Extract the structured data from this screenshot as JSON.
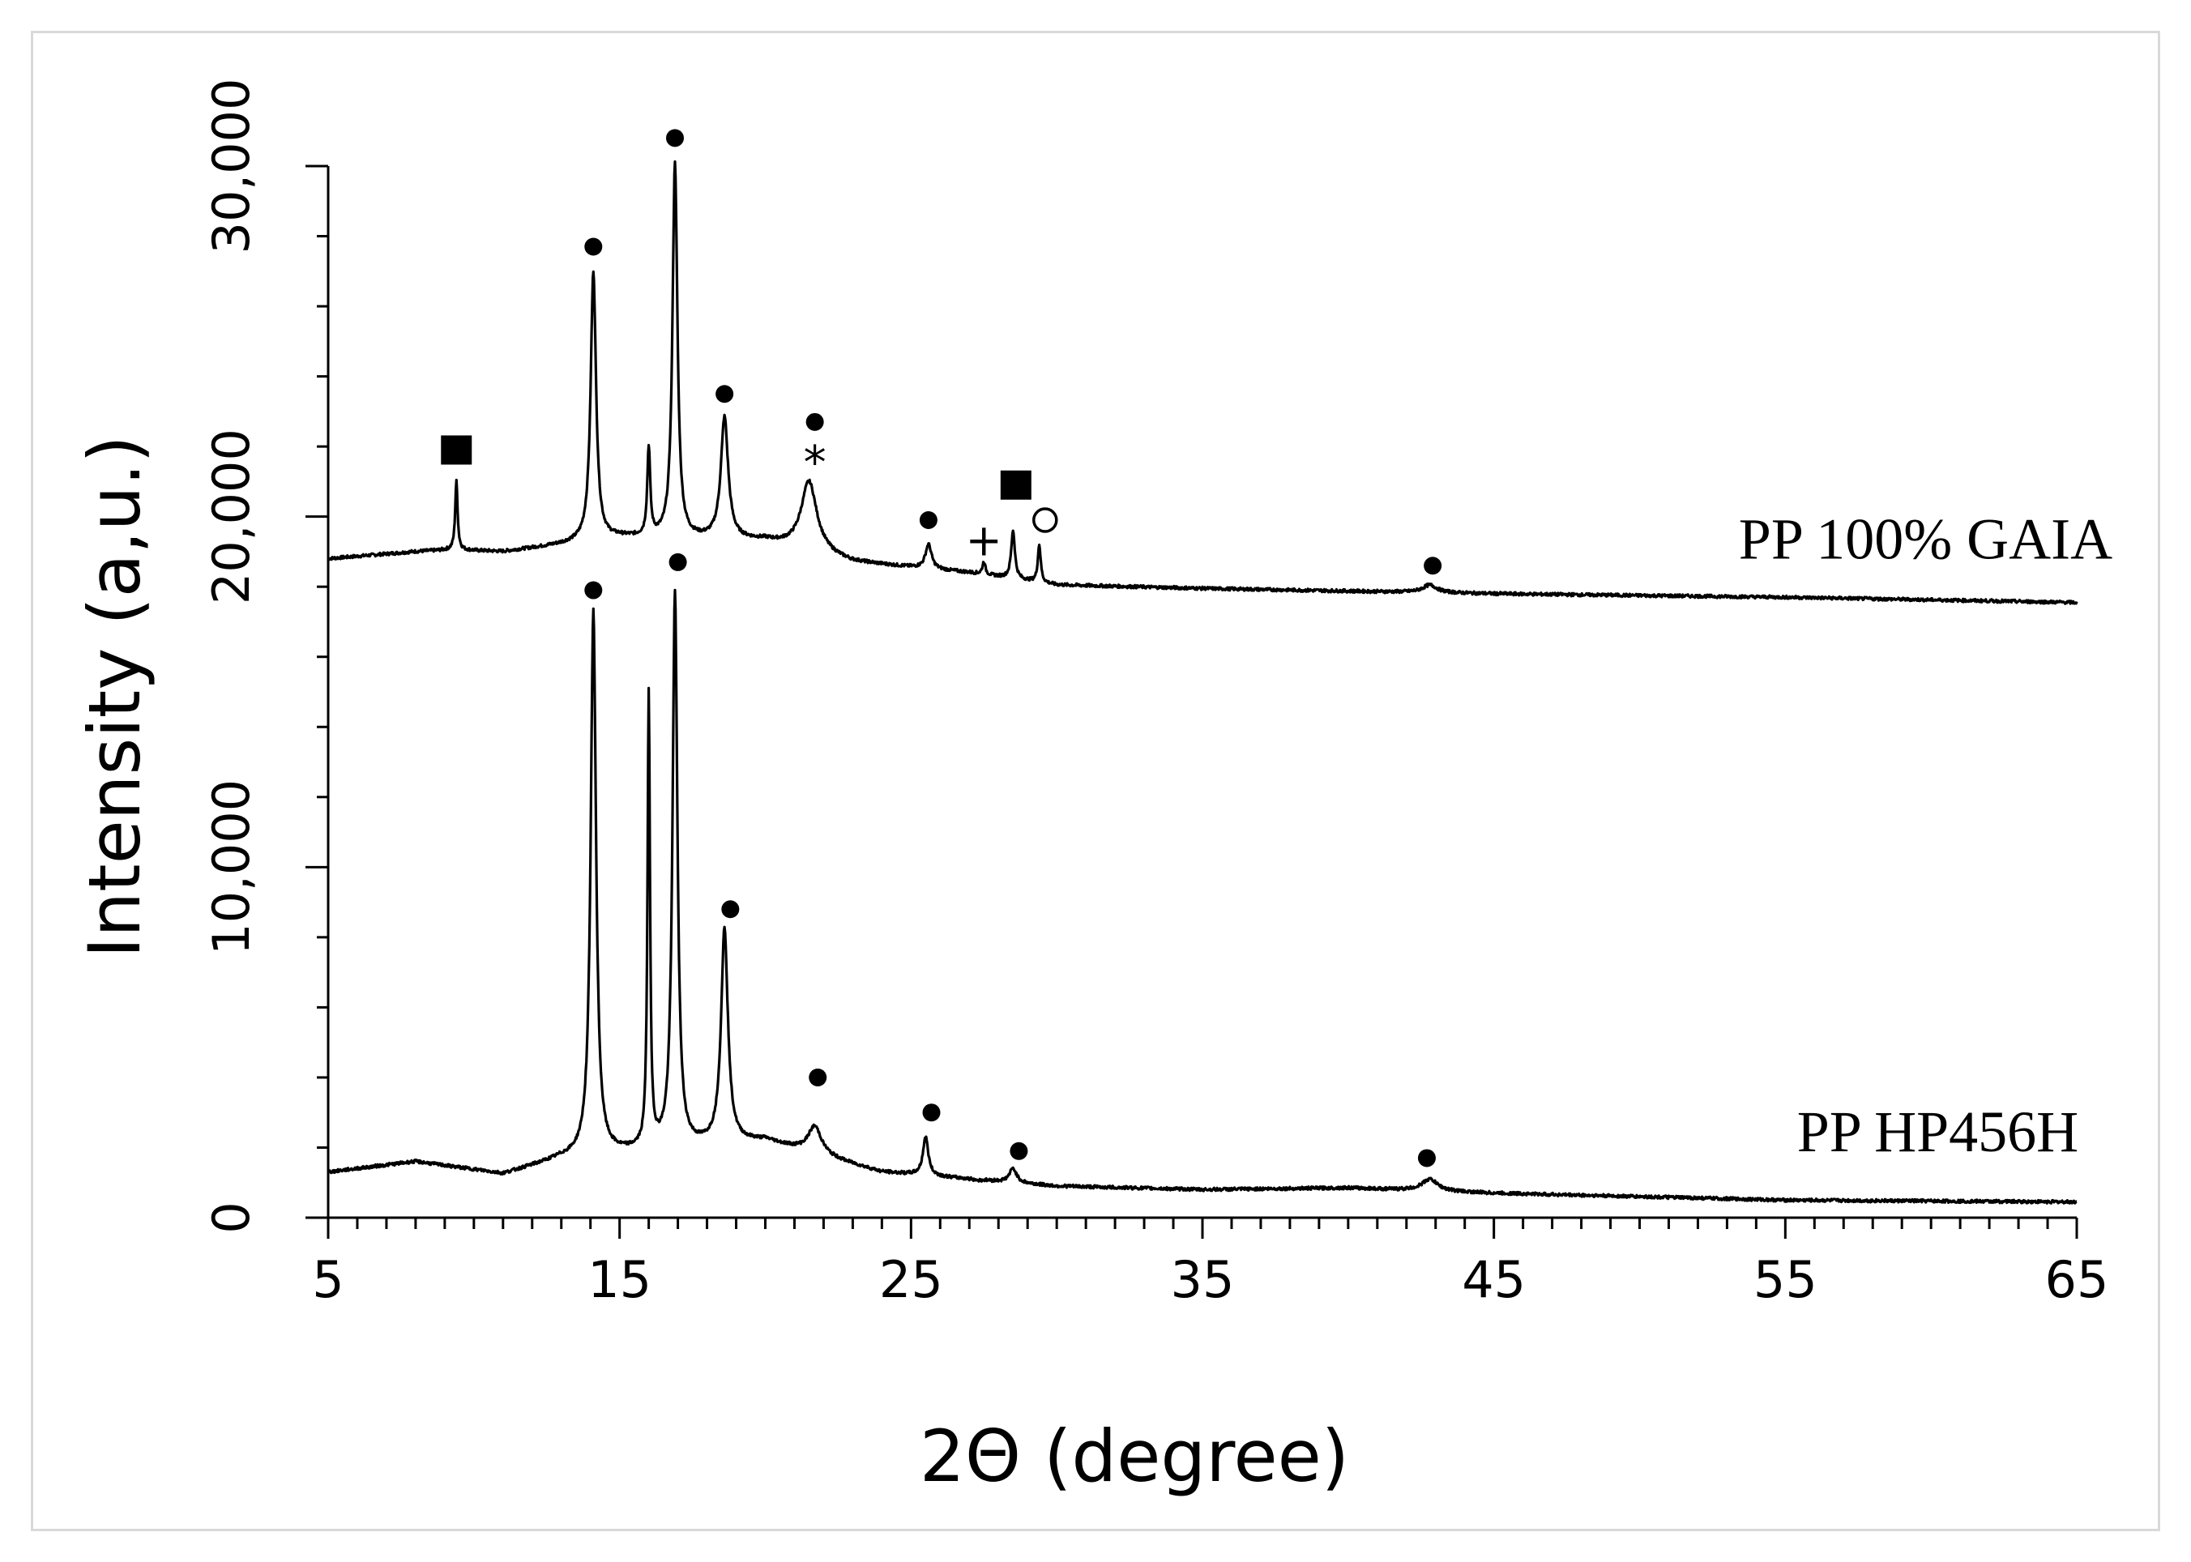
{
  "chart_data": {
    "type": "line",
    "xlabel": "2Θ (degree)",
    "ylabel": "Intensity (a,u.)",
    "xlim": [
      5,
      65
    ],
    "ylim": [
      0,
      30000
    ],
    "x_ticks": [
      "5",
      "15",
      "25",
      "35",
      "45",
      "55",
      "65"
    ],
    "y_ticks": [
      "0",
      "10,000",
      "20,000",
      "30,000"
    ],
    "grid": false,
    "legend": "none",
    "series": [
      {
        "name": "PP 100% GAIA",
        "color": "#000000",
        "baseline": [
          [
            5,
            18800
          ],
          [
            8,
            19000
          ],
          [
            9.2,
            19050
          ],
          [
            11,
            19000
          ],
          [
            12.5,
            19150
          ],
          [
            15,
            19400
          ],
          [
            20,
            19300
          ],
          [
            23,
            18700
          ],
          [
            27,
            18400
          ],
          [
            30,
            18050
          ],
          [
            35,
            17950
          ],
          [
            45,
            17800
          ],
          [
            55,
            17700
          ],
          [
            65,
            17550
          ]
        ],
        "peaks": [
          {
            "x": 9.4,
            "y": 21000,
            "width": 0.1
          },
          {
            "x": 14.1,
            "y": 27000,
            "width": 0.22
          },
          {
            "x": 16.0,
            "y": 21900,
            "width": 0.12
          },
          {
            "x": 16.9,
            "y": 30100,
            "width": 0.2
          },
          {
            "x": 18.6,
            "y": 22800,
            "width": 0.3
          },
          {
            "x": 21.5,
            "y": 21000,
            "width": 0.65
          },
          {
            "x": 25.6,
            "y": 19200,
            "width": 0.25
          },
          {
            "x": 27.5,
            "y": 18700,
            "width": 0.12
          },
          {
            "x": 28.5,
            "y": 19600,
            "width": 0.15
          },
          {
            "x": 29.4,
            "y": 19200,
            "width": 0.12
          },
          {
            "x": 42.8,
            "y": 18050,
            "width": 0.6
          }
        ],
        "markers": [
          {
            "symbol": "square",
            "x": 9.4,
            "y": 21900
          },
          {
            "symbol": "dot",
            "x": 14.1,
            "y": 27700
          },
          {
            "symbol": "dot",
            "x": 16.9,
            "y": 30800
          },
          {
            "symbol": "dot",
            "x": 18.6,
            "y": 23500
          },
          {
            "symbol": "dot",
            "x": 21.7,
            "y": 22700
          },
          {
            "symbol": "asterisk",
            "x": 21.7,
            "y": 21800
          },
          {
            "symbol": "dot",
            "x": 25.6,
            "y": 19900
          },
          {
            "symbol": "dagger",
            "x": 27.5,
            "y": 19400
          },
          {
            "symbol": "square",
            "x": 28.6,
            "y": 20900
          },
          {
            "symbol": "circle",
            "x": 29.6,
            "y": 19900
          },
          {
            "symbol": "dot",
            "x": 42.9,
            "y": 18600
          }
        ]
      },
      {
        "name": "PP HP456H",
        "color": "#000000",
        "baseline": [
          [
            5,
            1300
          ],
          [
            8,
            1600
          ],
          [
            11,
            1250
          ],
          [
            13,
            1700
          ],
          [
            20,
            2200
          ],
          [
            24,
            1300
          ],
          [
            30,
            900
          ],
          [
            35,
            800
          ],
          [
            40,
            850
          ],
          [
            45,
            700
          ],
          [
            55,
            500
          ],
          [
            65,
            450
          ]
        ],
        "peaks": [
          {
            "x": 14.1,
            "y": 17300,
            "width": 0.22
          },
          {
            "x": 16.0,
            "y": 14800,
            "width": 0.1
          },
          {
            "x": 16.9,
            "y": 17800,
            "width": 0.2
          },
          {
            "x": 18.6,
            "y": 8200,
            "width": 0.28
          },
          {
            "x": 21.7,
            "y": 2600,
            "width": 0.55
          },
          {
            "x": 25.5,
            "y": 2300,
            "width": 0.22
          },
          {
            "x": 27.3,
            "y": 1050,
            "width": 0.2
          },
          {
            "x": 28.5,
            "y": 1400,
            "width": 0.3
          },
          {
            "x": 42.8,
            "y": 1100,
            "width": 0.65
          }
        ],
        "markers": [
          {
            "symbol": "dot",
            "x": 14.1,
            "y": 17900
          },
          {
            "symbol": "dot",
            "x": 17.0,
            "y": 18700
          },
          {
            "symbol": "dot",
            "x": 18.8,
            "y": 8800
          },
          {
            "symbol": "dot",
            "x": 21.8,
            "y": 4000
          },
          {
            "symbol": "dot",
            "x": 25.7,
            "y": 3000
          },
          {
            "symbol": "dot",
            "x": 28.7,
            "y": 1900
          },
          {
            "symbol": "dot",
            "x": 42.7,
            "y": 1700
          }
        ]
      }
    ],
    "annotations": [
      {
        "text": "PP 100% GAIA",
        "x": 53.4,
        "y": 18800
      },
      {
        "text": "PP HP456H",
        "x": 55.4,
        "y": 1900
      }
    ]
  }
}
